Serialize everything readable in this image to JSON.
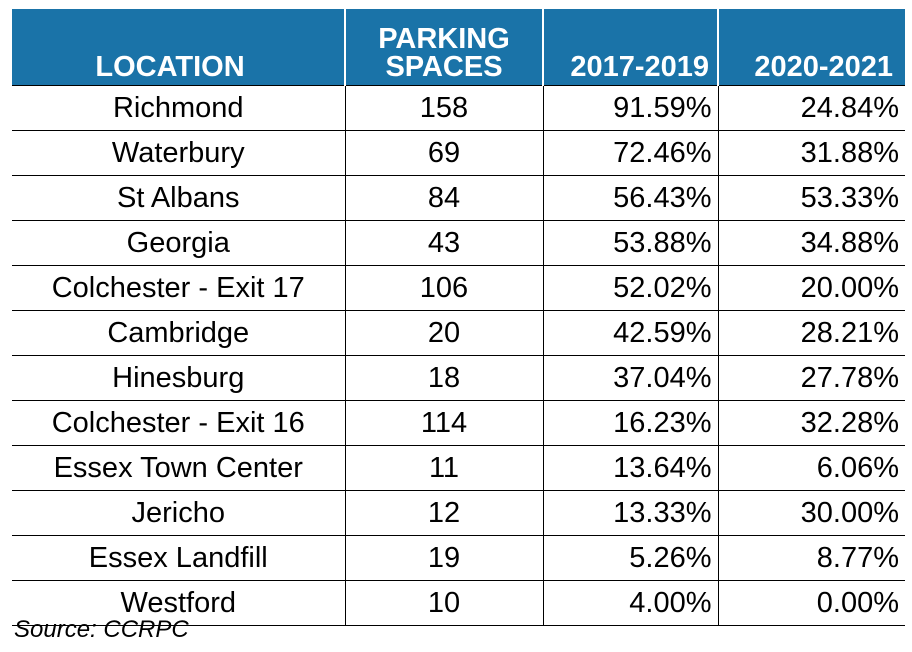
{
  "table": {
    "headers": {
      "location": "LOCATION",
      "parking_line1": "PARKING",
      "parking_line2": "SPACES",
      "period1": "2017-2019",
      "period2": "2020-2021"
    },
    "rows": [
      {
        "location": "Richmond",
        "spaces": "158",
        "p1": "91.59%",
        "p2": "24.84%"
      },
      {
        "location": "Waterbury",
        "spaces": "69",
        "p1": "72.46%",
        "p2": "31.88%"
      },
      {
        "location": "St Albans",
        "spaces": "84",
        "p1": "56.43%",
        "p2": "53.33%"
      },
      {
        "location": "Georgia",
        "spaces": "43",
        "p1": "53.88%",
        "p2": "34.88%"
      },
      {
        "location": "Colchester - Exit 17",
        "spaces": "106",
        "p1": "52.02%",
        "p2": "20.00%"
      },
      {
        "location": "Cambridge",
        "spaces": "20",
        "p1": "42.59%",
        "p2": "28.21%"
      },
      {
        "location": "Hinesburg",
        "spaces": "18",
        "p1": "37.04%",
        "p2": "27.78%"
      },
      {
        "location": "Colchester - Exit 16",
        "spaces": "114",
        "p1": "16.23%",
        "p2": "32.28%"
      },
      {
        "location": "Essex Town Center",
        "spaces": "11",
        "p1": "13.64%",
        "p2": "6.06%"
      },
      {
        "location": "Jericho",
        "spaces": "12",
        "p1": "13.33%",
        "p2": "30.00%"
      },
      {
        "location": "Essex Landfill",
        "spaces": "19",
        "p1": "5.26%",
        "p2": "8.77%"
      },
      {
        "location": "Westford",
        "spaces": "10",
        "p1": "4.00%",
        "p2": "0.00%"
      }
    ]
  },
  "source": "Source: CCRPC",
  "colors": {
    "header_background": "#1a73a8",
    "header_text": "#ffffff"
  }
}
